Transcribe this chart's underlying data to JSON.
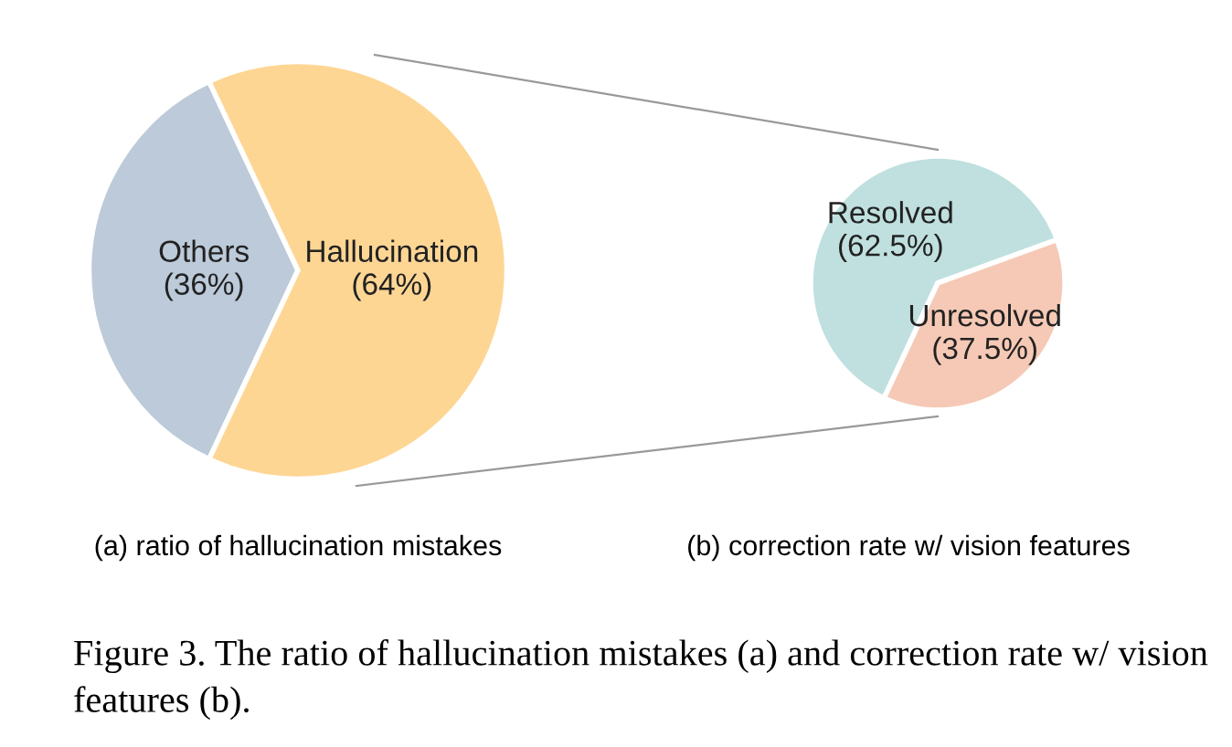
{
  "chart_data": [
    {
      "type": "pie",
      "xlabel": "(a) ratio of hallucination mistakes",
      "categories": [
        "Others",
        "Hallucination"
      ],
      "values": [
        36,
        64
      ],
      "value_labels": [
        "(36%)",
        "(64%)"
      ],
      "colors": [
        "#bccad9",
        "#fed694"
      ],
      "annotations": [
        "Figure 3. The ratio of hallucination mistakes (a) and correction rate w/ vision features (b)."
      ]
    },
    {
      "type": "pie",
      "xlabel": "(b) correction rate w/ vision features",
      "categories": [
        "Resolved",
        "Unresolved"
      ],
      "values": [
        62.5,
        37.5
      ],
      "value_labels": [
        "(62.5%)",
        "(37.5%)"
      ],
      "colors": [
        "#bfe0df",
        "#f5c9b5"
      ]
    }
  ]
}
